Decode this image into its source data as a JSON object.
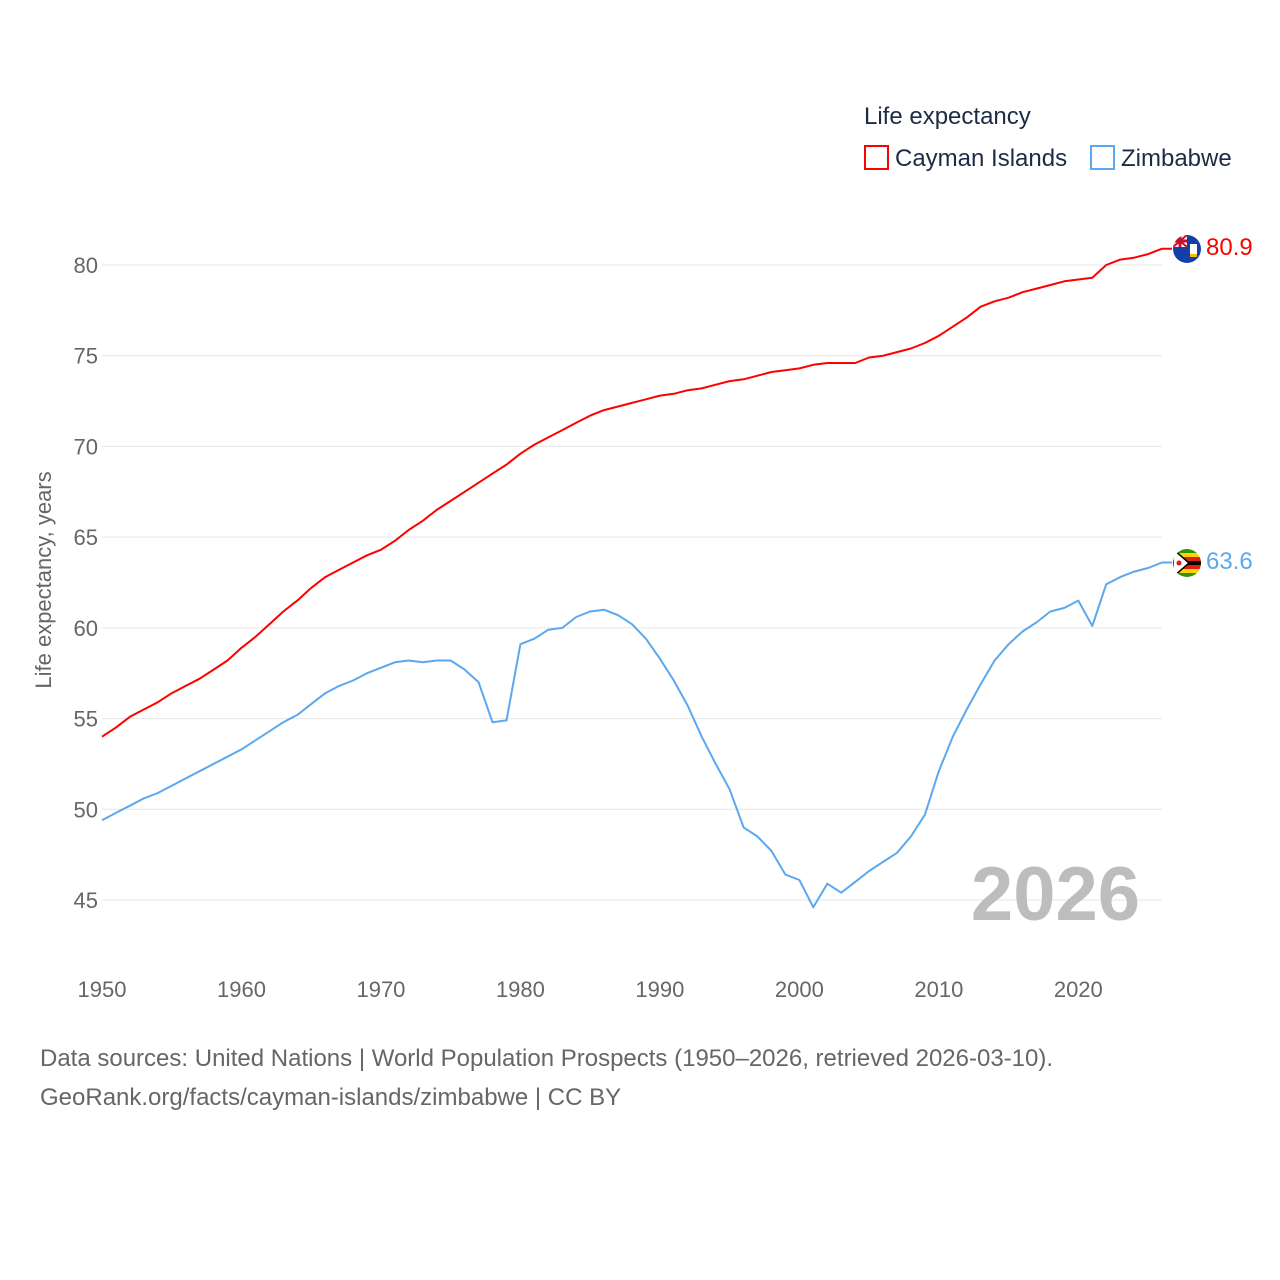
{
  "chart_data": {
    "type": "line",
    "title": "Life expectancy",
    "xlabel": "",
    "ylabel": "Life expectancy, years",
    "xlim": [
      1950,
      2026
    ],
    "ylim": [
      45,
      80
    ],
    "x_ticks": [
      "1950",
      "1960",
      "1970",
      "1980",
      "1990",
      "2000",
      "2010",
      "2020"
    ],
    "y_ticks": [
      "45",
      "50",
      "55",
      "60",
      "65",
      "70",
      "75",
      "80"
    ],
    "grid": true,
    "legend_placement": "top-right",
    "year_overlay": "2026",
    "series": [
      {
        "name": "Cayman Islands",
        "color": "#ff0000",
        "end_label": "80.9",
        "flag": "cayman-islands-flag-icon",
        "values": [
          54.0,
          54.5,
          55.1,
          55.5,
          55.9,
          56.4,
          56.8,
          57.2,
          57.7,
          58.2,
          58.9,
          59.5,
          60.2,
          60.9,
          61.5,
          62.2,
          62.8,
          63.2,
          63.6,
          64.0,
          64.3,
          64.8,
          65.4,
          65.9,
          66.5,
          67.0,
          67.5,
          68.0,
          68.5,
          69.0,
          69.6,
          70.1,
          70.5,
          70.9,
          71.3,
          71.7,
          72.0,
          72.2,
          72.4,
          72.6,
          72.8,
          72.9,
          73.1,
          73.2,
          73.4,
          73.6,
          73.7,
          73.9,
          74.1,
          74.2,
          74.3,
          74.5,
          74.6,
          74.6,
          74.6,
          74.9,
          75.0,
          75.2,
          75.4,
          75.7,
          76.1,
          76.6,
          77.1,
          77.7,
          78.0,
          78.2,
          78.5,
          78.7,
          78.9,
          79.1,
          79.2,
          79.3,
          80.0,
          80.3,
          80.4,
          80.6,
          80.9
        ]
      },
      {
        "name": "Zimbabwe",
        "color": "#5ba8ee",
        "end_label": "63.6",
        "flag": "zimbabwe-flag-icon",
        "values": [
          49.4,
          49.8,
          50.2,
          50.6,
          50.9,
          51.3,
          51.7,
          52.1,
          52.5,
          52.9,
          53.3,
          53.8,
          54.3,
          54.8,
          55.2,
          55.8,
          56.4,
          56.8,
          57.1,
          57.5,
          57.8,
          58.1,
          58.2,
          58.1,
          58.2,
          58.2,
          57.7,
          57.0,
          54.8,
          54.9,
          59.1,
          59.4,
          59.9,
          60.0,
          60.6,
          60.9,
          61.0,
          60.7,
          60.2,
          59.4,
          58.3,
          57.1,
          55.7,
          54.0,
          52.5,
          51.1,
          49.0,
          48.5,
          47.7,
          46.4,
          46.1,
          44.6,
          45.9,
          45.4,
          46.0,
          46.6,
          47.1,
          47.6,
          48.5,
          49.7,
          52.1,
          54.0,
          55.5,
          56.9,
          58.2,
          59.1,
          59.8,
          60.3,
          60.9,
          61.1,
          61.5,
          60.1,
          62.4,
          62.8,
          63.1,
          63.3,
          63.6
        ]
      }
    ]
  },
  "footer": {
    "sources": "Data sources: United Nations | World Population Prospects (1950–2026, retrieved 2026-03-10).",
    "credit": "GeoRank.org/facts/cayman-islands/zimbabwe | CC BY"
  }
}
